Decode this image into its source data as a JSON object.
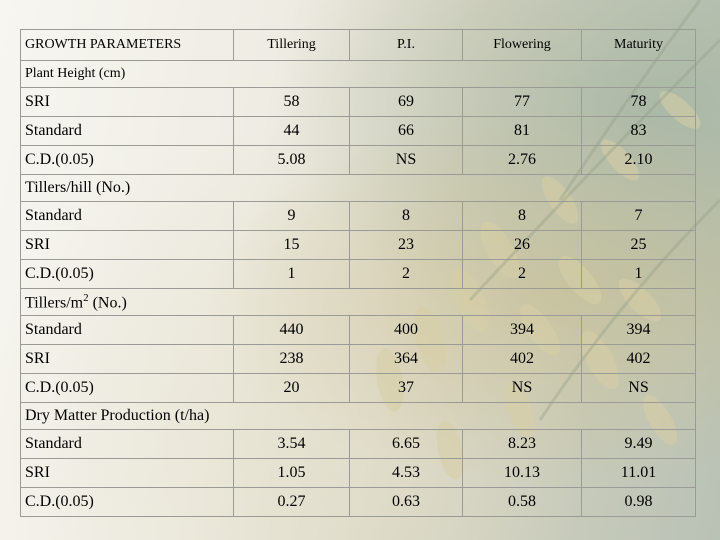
{
  "header": {
    "parameter": "GROWTH PARAMETERS",
    "stages": [
      "Tillering",
      "P.I.",
      "Flowering",
      "Maturity"
    ]
  },
  "sections": [
    {
      "title": "Plant Height (cm)",
      "rows": [
        {
          "label": "SRI",
          "values": [
            "58",
            "69",
            "77",
            "78"
          ]
        },
        {
          "label": "Standard",
          "values": [
            "44",
            "66",
            "81",
            "83"
          ]
        },
        {
          "label": "C.D.(0.05)",
          "values": [
            "5.08",
            "NS",
            "2.76",
            "2.10"
          ]
        }
      ]
    },
    {
      "title": "Tillers/hill (No.)",
      "rows": [
        {
          "label": "Standard",
          "values": [
            "9",
            "8",
            "8",
            "7"
          ]
        },
        {
          "label": "SRI",
          "values": [
            "15",
            "23",
            "26",
            "25"
          ]
        },
        {
          "label": "C.D.(0.05)",
          "values": [
            "1",
            "2",
            "2",
            "1"
          ]
        }
      ]
    },
    {
      "title": "Tillers/m2 (No.)",
      "title_parts": {
        "prefix": "Tillers/m",
        "superscript": "2",
        "suffix": " (No.)"
      },
      "rows": [
        {
          "label": "Standard",
          "values": [
            "440",
            "400",
            "394",
            "394"
          ]
        },
        {
          "label": "SRI",
          "values": [
            "238",
            "364",
            "402",
            "402"
          ]
        },
        {
          "label": "C.D.(0.05)",
          "values": [
            "20",
            "37",
            "NS",
            "NS"
          ]
        }
      ]
    },
    {
      "title": "Dry Matter Production (t/ha)",
      "rows": [
        {
          "label": "Standard",
          "values": [
            "3.54",
            "6.65",
            "8.23",
            "9.49"
          ]
        },
        {
          "label": "SRI",
          "values": [
            "1.05",
            "4.53",
            "10.13",
            "11.01"
          ]
        },
        {
          "label": "C.D.(0.05)",
          "values": [
            "0.27",
            "0.63",
            "0.58",
            "0.98"
          ]
        }
      ]
    }
  ]
}
